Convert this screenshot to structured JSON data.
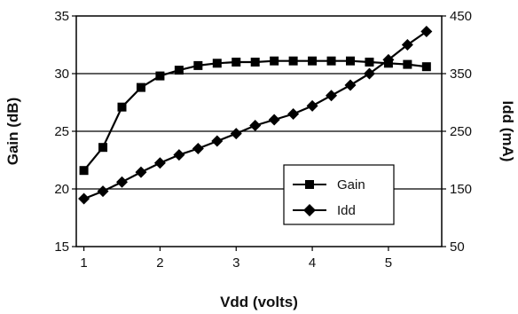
{
  "chart_data": {
    "type": "line",
    "xlabel": "Vdd (volts)",
    "ylabel": "Gain (dB)",
    "y2label": "Idd (mA)",
    "xlim": [
      0.9,
      5.7
    ],
    "ylim": [
      15,
      35
    ],
    "y2lim": [
      50,
      450
    ],
    "x_ticks": [
      "1",
      "2",
      "3",
      "4",
      "5"
    ],
    "y_ticks": [
      "15",
      "20",
      "25",
      "30",
      "35"
    ],
    "y2_ticks": [
      "50",
      "150",
      "250",
      "350",
      "450"
    ],
    "grid": "horizontal",
    "legend_position": "lower-right",
    "series": [
      {
        "name": "Gain",
        "axis": "left",
        "marker": "square",
        "color": "#000000",
        "x": [
          1.0,
          1.25,
          1.5,
          1.75,
          2.0,
          2.25,
          2.5,
          2.75,
          3.0,
          3.25,
          3.5,
          3.75,
          4.0,
          4.25,
          4.5,
          4.75,
          5.0,
          5.25,
          5.5
        ],
        "values": [
          21.6,
          23.6,
          27.1,
          28.8,
          29.8,
          30.3,
          30.7,
          30.9,
          31.0,
          31.0,
          31.1,
          31.1,
          31.1,
          31.1,
          31.1,
          31.0,
          30.9,
          30.8,
          30.6
        ]
      },
      {
        "name": "Idd",
        "axis": "right",
        "marker": "diamond",
        "color": "#000000",
        "x": [
          1.0,
          1.25,
          1.5,
          1.75,
          2.0,
          2.25,
          2.5,
          2.75,
          3.0,
          3.25,
          3.5,
          3.75,
          4.0,
          4.25,
          4.5,
          4.75,
          5.0,
          5.25,
          5.5
        ],
        "values": [
          133,
          146,
          162,
          179,
          195,
          209,
          220,
          233,
          246,
          260,
          270,
          280,
          294,
          312,
          330,
          350,
          374,
          400,
          423
        ]
      }
    ]
  }
}
